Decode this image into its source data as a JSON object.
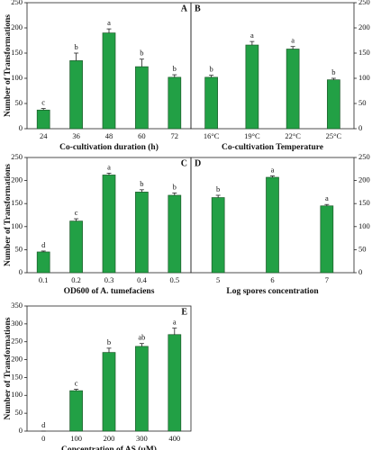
{
  "chart_data": [
    {
      "type": "bar",
      "panel_label": "A",
      "xlabel": "Co-cultivation duration (h)",
      "ylabel": "Number of Transformations",
      "categories": [
        "24",
        "36",
        "48",
        "60",
        "72"
      ],
      "values": [
        37,
        135,
        190,
        123,
        102
      ],
      "errors": [
        3,
        15,
        8,
        15,
        5
      ],
      "value_labels": [
        "c",
        "b",
        "a",
        "b",
        "b"
      ],
      "color": "#22a045",
      "ylim": [
        0,
        250
      ],
      "yticks": [
        0,
        50,
        100,
        150,
        200,
        250
      ],
      "yaxis_side": "left"
    },
    {
      "type": "bar",
      "panel_label": "B",
      "xlabel": "Co-cultivation Temperature",
      "categories": [
        "16°C",
        "19°C",
        "22°C",
        "25°C"
      ],
      "values": [
        102,
        166,
        158,
        97
      ],
      "errors": [
        4,
        7,
        5,
        3
      ],
      "value_labels": [
        "b",
        "a",
        "a",
        "b"
      ],
      "color": "#22a045",
      "ylim": [
        0,
        250
      ],
      "yticks": [
        0,
        50,
        100,
        150,
        200,
        250
      ],
      "yaxis_side": "right"
    },
    {
      "type": "bar",
      "panel_label": "C",
      "xlabel": "OD600 of A. tumefaciens",
      "ylabel": "Number of Transformations",
      "categories": [
        "0.1",
        "0.2",
        "0.3",
        "0.4",
        "0.5"
      ],
      "values": [
        45,
        112,
        212,
        175,
        168
      ],
      "errors": [
        2,
        5,
        4,
        5,
        5
      ],
      "value_labels": [
        "d",
        "c",
        "a",
        "b",
        "b"
      ],
      "color": "#22a045",
      "ylim": [
        0,
        250
      ],
      "yticks": [
        0,
        50,
        100,
        150,
        200,
        250
      ],
      "yaxis_side": "left"
    },
    {
      "type": "bar",
      "panel_label": "D",
      "xlabel": "Log spores concentration",
      "categories": [
        "5",
        "6",
        "7"
      ],
      "values": [
        163,
        207,
        145
      ],
      "errors": [
        5,
        3,
        3
      ],
      "value_labels": [
        "b",
        "a",
        "a"
      ],
      "color": "#22a045",
      "ylim": [
        0,
        250
      ],
      "yticks": [
        0,
        50,
        100,
        150,
        200,
        250
      ],
      "yaxis_side": "right"
    },
    {
      "type": "bar",
      "panel_label": "E",
      "xlabel": "Concentration of AS (μM)",
      "ylabel": "Number of Transformations",
      "categories": [
        "0",
        "100",
        "200",
        "300",
        "400"
      ],
      "values": [
        0,
        113,
        220,
        237,
        270
      ],
      "errors": [
        0,
        4,
        12,
        8,
        18
      ],
      "value_labels": [
        "d",
        "c",
        "b",
        "ab",
        "a"
      ],
      "color": "#22a045",
      "ylim": [
        0,
        350
      ],
      "yticks": [
        0,
        50,
        100,
        150,
        200,
        250,
        300,
        350
      ],
      "yaxis_side": "left"
    }
  ]
}
